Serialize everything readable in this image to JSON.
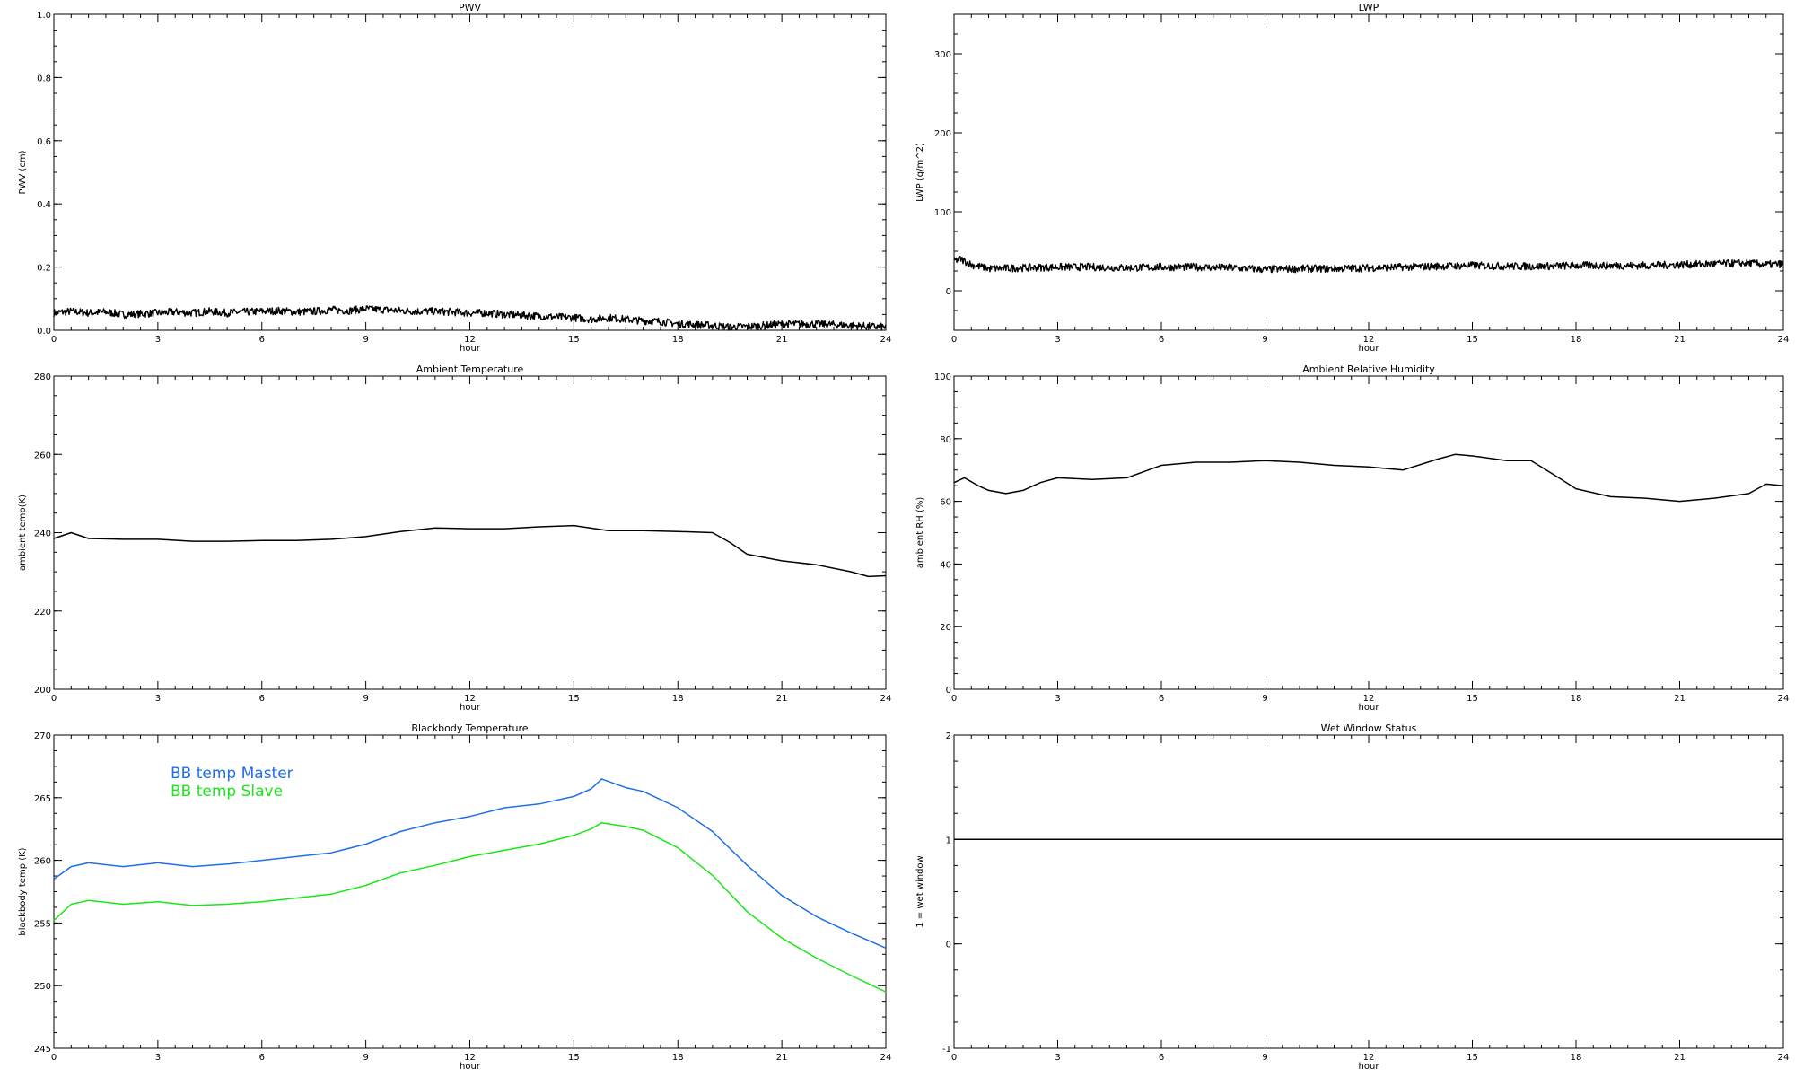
{
  "chart_data": [
    {
      "type": "line",
      "title": "PWV",
      "xlabel": "hour",
      "ylabel": "PWV (cm)",
      "xlim": [
        0,
        24
      ],
      "ylim": [
        0,
        1.0
      ],
      "xticks": [
        "0",
        "3",
        "6",
        "9",
        "12",
        "15",
        "18",
        "21",
        "24"
      ],
      "yticks": [
        "0.0",
        "0.2",
        "0.4",
        "0.6",
        "0.8",
        "1.0"
      ],
      "grid": false,
      "noisy": true,
      "series": [
        {
          "color": "#000000",
          "x": [
            0,
            0.5,
            1,
            1.5,
            2,
            2.5,
            3,
            3.5,
            4,
            4.5,
            5,
            5.5,
            6,
            6.5,
            7,
            7.5,
            8,
            8.5,
            9,
            9.5,
            10,
            10.5,
            11,
            11.5,
            12,
            12.5,
            13,
            13.5,
            14,
            14.5,
            15,
            15.5,
            16,
            16.5,
            17,
            17.5,
            18,
            18.5,
            19,
            19.5,
            20,
            20.5,
            21,
            21.5,
            22,
            22.5,
            23,
            23.5,
            24
          ],
          "values": [
            0.055,
            0.06,
            0.055,
            0.058,
            0.05,
            0.052,
            0.055,
            0.058,
            0.055,
            0.06,
            0.055,
            0.058,
            0.06,
            0.062,
            0.058,
            0.06,
            0.065,
            0.062,
            0.068,
            0.065,
            0.062,
            0.06,
            0.06,
            0.058,
            0.055,
            0.055,
            0.05,
            0.048,
            0.045,
            0.042,
            0.04,
            0.035,
            0.04,
            0.035,
            0.03,
            0.028,
            0.02,
            0.018,
            0.015,
            0.01,
            0.012,
            0.015,
            0.02,
            0.02,
            0.02,
            0.018,
            0.015,
            0.012,
            0.01
          ]
        }
      ]
    },
    {
      "type": "line",
      "title": "LWP",
      "xlabel": "hour",
      "ylabel": "LWP (g/m^2)",
      "xlim": [
        0,
        24
      ],
      "ylim": [
        -50,
        350
      ],
      "xticks": [
        "0",
        "3",
        "6",
        "9",
        "12",
        "15",
        "18",
        "21",
        "24"
      ],
      "yticks": [
        "0",
        "100",
        "200",
        "300"
      ],
      "grid": false,
      "noisy": true,
      "series": [
        {
          "color": "#000000",
          "x": [
            0,
            0.2,
            0.5,
            1,
            2,
            3,
            4,
            5,
            6,
            7,
            8,
            9,
            10,
            11,
            12,
            13,
            14,
            15,
            16,
            17,
            18,
            19,
            20,
            21,
            22,
            23,
            23.5,
            24
          ],
          "values": [
            38,
            40,
            33,
            28,
            29,
            30,
            30,
            29,
            30,
            30,
            29,
            27,
            28,
            28,
            29,
            30,
            31,
            32,
            31,
            31,
            32,
            32,
            32,
            33,
            34,
            35,
            33,
            34
          ]
        }
      ]
    },
    {
      "type": "line",
      "title": "Ambient Temperature",
      "xlabel": "hour",
      "ylabel": "ambient temp(K)",
      "xlim": [
        0,
        24
      ],
      "ylim": [
        200,
        280
      ],
      "xticks": [
        "0",
        "3",
        "6",
        "9",
        "12",
        "15",
        "18",
        "21",
        "24"
      ],
      "yticks": [
        "200",
        "220",
        "240",
        "260",
        "280"
      ],
      "grid": false,
      "noisy": false,
      "series": [
        {
          "color": "#000000",
          "x": [
            0,
            0.5,
            1,
            2,
            3,
            4,
            5,
            6,
            7,
            8,
            9,
            10,
            11,
            12,
            13,
            14,
            15,
            16,
            17,
            18,
            19,
            19.5,
            20,
            21,
            22,
            23,
            23.5,
            24
          ],
          "values": [
            238.5,
            240,
            238.5,
            238.3,
            238.3,
            237.8,
            237.8,
            238,
            238,
            238.3,
            239,
            240.3,
            241.2,
            241,
            241,
            241.5,
            241.8,
            240.5,
            240.5,
            240.3,
            240,
            237.5,
            234.5,
            232.8,
            231.8,
            230,
            228.8,
            229
          ]
        }
      ]
    },
    {
      "type": "line",
      "title": "Ambient Relative Humidity",
      "xlabel": "hour",
      "ylabel": "ambient RH (%)",
      "xlim": [
        0,
        24
      ],
      "ylim": [
        0,
        100
      ],
      "xticks": [
        "0",
        "3",
        "6",
        "9",
        "12",
        "15",
        "18",
        "21",
        "24"
      ],
      "yticks": [
        "0",
        "20",
        "40",
        "60",
        "80",
        "100"
      ],
      "grid": false,
      "noisy": false,
      "series": [
        {
          "color": "#000000",
          "x": [
            0,
            0.3,
            0.7,
            1,
            1.5,
            2,
            2.5,
            3,
            4,
            5,
            5.5,
            6,
            7,
            8,
            9,
            10,
            11,
            12,
            13,
            14,
            14.5,
            15,
            16,
            16.7,
            17.5,
            18,
            19,
            20,
            21,
            22,
            23,
            23.5,
            24
          ],
          "values": [
            66,
            67.5,
            65,
            63.5,
            62.5,
            63.5,
            66,
            67.5,
            67,
            67.5,
            69.5,
            71.5,
            72.5,
            72.5,
            73,
            72.5,
            71.5,
            71,
            70,
            73.5,
            75,
            74.5,
            73,
            73,
            67.5,
            64,
            61.5,
            61,
            60,
            61,
            62.5,
            65.5,
            65
          ]
        }
      ]
    },
    {
      "type": "line",
      "title": "Blackbody Temperature",
      "xlabel": "hour",
      "ylabel": "blackbody temp (K)",
      "xlim": [
        0,
        24
      ],
      "ylim": [
        245,
        270
      ],
      "xticks": [
        "0",
        "3",
        "6",
        "9",
        "12",
        "15",
        "18",
        "21",
        "24"
      ],
      "yticks": [
        "245",
        "250",
        "255",
        "260",
        "265",
        "270"
      ],
      "grid": false,
      "legend": "top-left",
      "noisy": false,
      "series": [
        {
          "name": "BB temp Master",
          "color": "#1e6fe8",
          "x": [
            0,
            0.5,
            1,
            2,
            3,
            4,
            5,
            6,
            7,
            8,
            9,
            10,
            11,
            12,
            13,
            14,
            15,
            15.5,
            15.8,
            16.5,
            17,
            18,
            19,
            20,
            21,
            22,
            23,
            24
          ],
          "values": [
            258.5,
            259.5,
            259.8,
            259.5,
            259.8,
            259.5,
            259.7,
            260,
            260.3,
            260.6,
            261.3,
            262.3,
            263,
            263.5,
            264.2,
            264.5,
            265.1,
            265.7,
            266.5,
            265.8,
            265.5,
            264.2,
            262.3,
            259.6,
            257.2,
            255.5,
            254.2,
            253
          ]
        },
        {
          "name": "BB temp Slave",
          "color": "#18e818",
          "x": [
            0,
            0.5,
            1,
            2,
            3,
            4,
            5,
            6,
            7,
            8,
            9,
            10,
            11,
            12,
            13,
            14,
            15,
            15.5,
            15.8,
            16.5,
            17,
            18,
            19,
            20,
            21,
            22,
            23,
            24
          ],
          "values": [
            255.2,
            256.5,
            256.8,
            256.5,
            256.7,
            256.4,
            256.5,
            256.7,
            257,
            257.3,
            258,
            259,
            259.6,
            260.3,
            260.8,
            261.3,
            262,
            262.5,
            263,
            262.7,
            262.4,
            261,
            258.8,
            255.9,
            253.8,
            252.2,
            250.8,
            249.5
          ]
        }
      ]
    },
    {
      "type": "line",
      "title": "Wet Window Status",
      "xlabel": "hour",
      "ylabel": "1 = wet window",
      "xlim": [
        0,
        24
      ],
      "ylim": [
        -1,
        2
      ],
      "xticks": [
        "0",
        "3",
        "6",
        "9",
        "12",
        "15",
        "18",
        "21",
        "24"
      ],
      "yticks": [
        "-1",
        "0",
        "1",
        "2"
      ],
      "grid": false,
      "noisy": false,
      "series": [
        {
          "color": "#000000",
          "x": [
            0,
            24
          ],
          "values": [
            1,
            1
          ]
        }
      ]
    }
  ]
}
